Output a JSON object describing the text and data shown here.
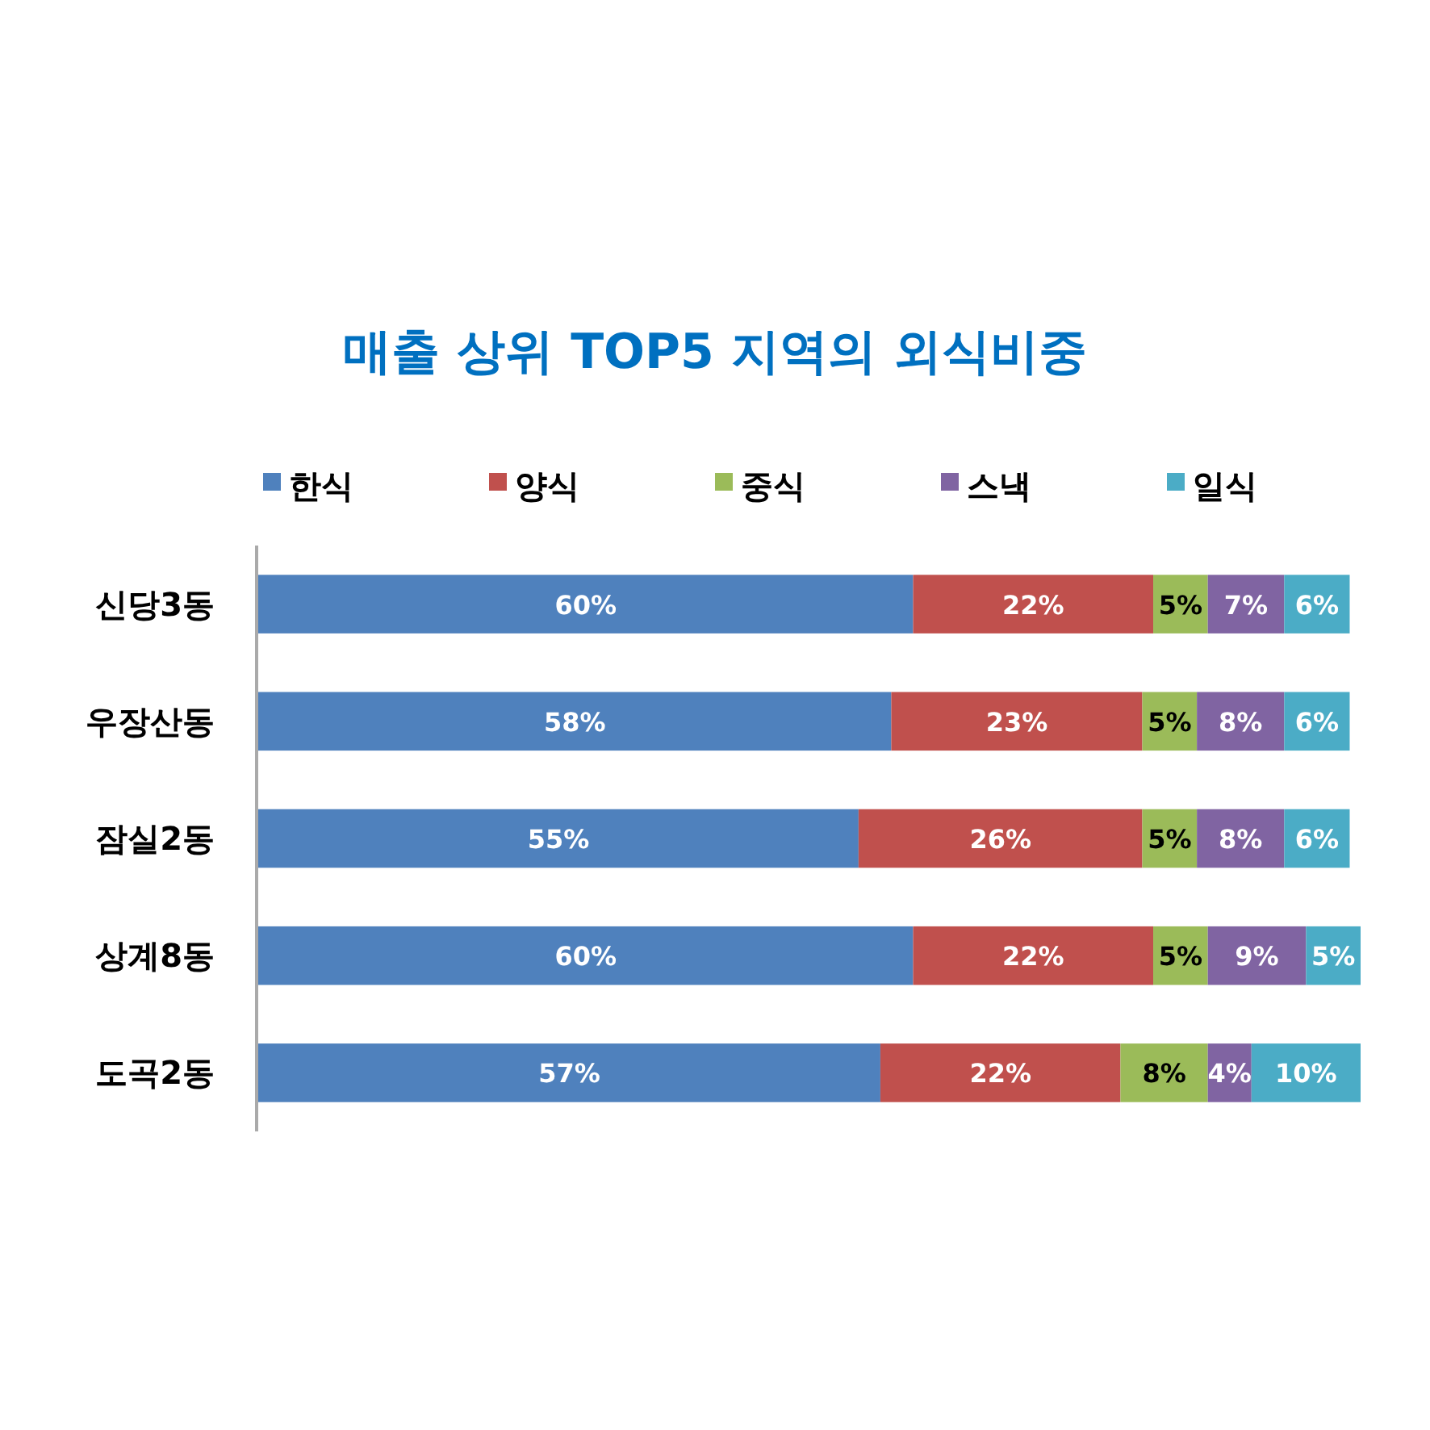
{
  "chart_data": {
    "type": "bar",
    "orientation": "horizontal",
    "stacked": true,
    "title": "매출 상위 TOP5 지역의 외식비중",
    "categories": [
      "신당3동",
      "우장산동",
      "잠실2동",
      "상계8동",
      "도곡2동"
    ],
    "series": [
      {
        "name": "한식",
        "color": "#4f81bd",
        "values": [
          60,
          58,
          55,
          60,
          57
        ],
        "value_labels": [
          "60%",
          "58%",
          "55%",
          "60%",
          "57%"
        ]
      },
      {
        "name": "양식",
        "color": "#c0504d",
        "values": [
          22,
          23,
          26,
          22,
          22
        ],
        "value_labels": [
          "22%",
          "23%",
          "26%",
          "22%",
          "22%"
        ]
      },
      {
        "name": "중식",
        "color": "#9bbb59",
        "values": [
          5,
          5,
          5,
          5,
          8
        ],
        "value_labels": [
          "5%",
          "5%",
          "5%",
          "5%",
          "8%"
        ]
      },
      {
        "name": "스낵",
        "color": "#8064a2",
        "values": [
          7,
          8,
          8,
          9,
          4
        ],
        "value_labels": [
          "7%",
          "8%",
          "8%",
          "9%",
          "4%"
        ]
      },
      {
        "name": "일식",
        "color": "#4bacc6",
        "values": [
          6,
          6,
          6,
          5,
          10
        ],
        "value_labels": [
          "6%",
          "6%",
          "6%",
          "5%",
          "10%"
        ]
      }
    ],
    "legend": "top"
  }
}
